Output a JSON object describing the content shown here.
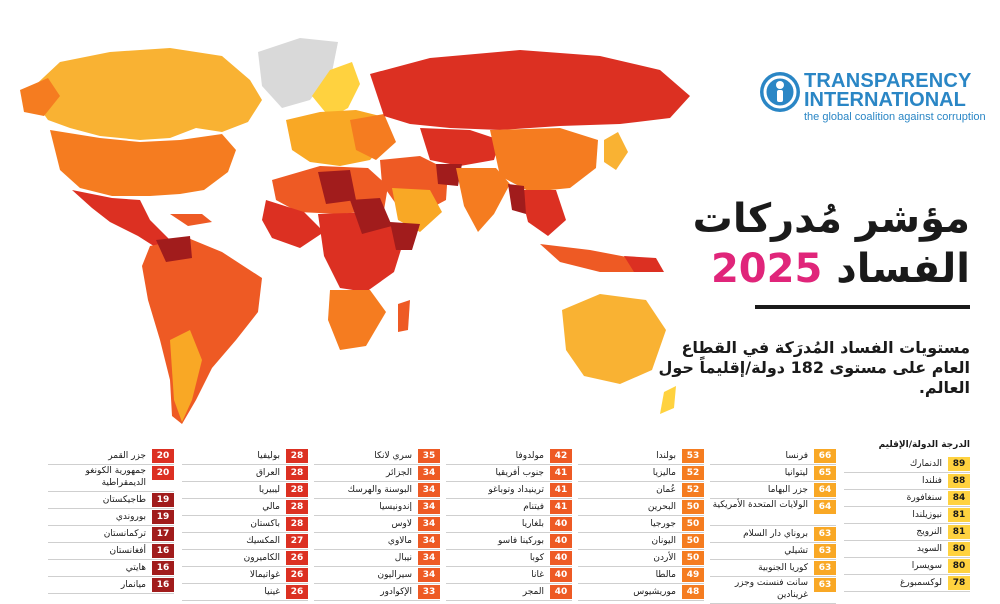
{
  "logo": {
    "line1": "TRANSPARENCY",
    "line2": "INTERNATIONAL",
    "tagline": "the global coalition against corruption",
    "color": "#2a86c5"
  },
  "title": {
    "line1": "مؤشر مُدركات",
    "line2_prefix": "الفساد",
    "year": "2025",
    "year_color": "#e0257a"
  },
  "subtitle": "مستويات الفساد المُدرَكة في القطاع العام على مستوى 182 دولة/إقليماً حول العالم.",
  "table_header": "الدرجة الدولة/الإقليم",
  "colors": {
    "very_high": "#ffd23f",
    "high": "#f9a825",
    "mid_high": "#f57c20",
    "mid": "#ee5a24",
    "low": "#dc3022",
    "very_low": "#a11c1c",
    "no_data": "#d9d9d9"
  },
  "columns": [
    {
      "rows": [
        {
          "country": "الدنمارك",
          "score": "89"
        },
        {
          "country": "فنلندا",
          "score": "88"
        },
        {
          "country": "سنغافورة",
          "score": "84"
        },
        {
          "country": "نيوزيلندا",
          "score": "81"
        },
        {
          "country": "النرويج",
          "score": "81"
        },
        {
          "country": "السويد",
          "score": "80"
        },
        {
          "country": "سويسرا",
          "score": "80"
        },
        {
          "country": "لوكسمبورغ",
          "score": "78"
        }
      ]
    },
    {
      "rows": [
        {
          "country": "فرنسا",
          "score": "66"
        },
        {
          "country": "ليتوانيا",
          "score": "65"
        },
        {
          "country": "جزر البهاما",
          "score": "64"
        },
        {
          "country": "الولايات المتحدة الأمريكية",
          "score": "64"
        },
        {
          "country": "بروناي دار السلام",
          "score": "63"
        },
        {
          "country": "تشيلي",
          "score": "63"
        },
        {
          "country": "كوريا الجنوبية",
          "score": "63"
        },
        {
          "country": "سانت فنسنت وجزر غرينادين",
          "score": "63"
        }
      ]
    },
    {
      "rows": [
        {
          "country": "بولندا",
          "score": "53"
        },
        {
          "country": "ماليزيا",
          "score": "52"
        },
        {
          "country": "عُمان",
          "score": "52"
        },
        {
          "country": "البحرين",
          "score": "50"
        },
        {
          "country": "جورجيا",
          "score": "50"
        },
        {
          "country": "اليونان",
          "score": "50"
        },
        {
          "country": "الأردن",
          "score": "50"
        },
        {
          "country": "مالطا",
          "score": "49"
        },
        {
          "country": "موريشيوس",
          "score": "48"
        }
      ]
    },
    {
      "rows": [
        {
          "country": "مولدوفا",
          "score": "42"
        },
        {
          "country": "جنوب أفريقيا",
          "score": "41"
        },
        {
          "country": "ترينيداد وتوباغو",
          "score": "41"
        },
        {
          "country": "فيتنام",
          "score": "41"
        },
        {
          "country": "بلغاريا",
          "score": "40"
        },
        {
          "country": "بوركينا فاسو",
          "score": "40"
        },
        {
          "country": "كوبا",
          "score": "40"
        },
        {
          "country": "غانا",
          "score": "40"
        },
        {
          "country": "المجر",
          "score": "40"
        }
      ]
    },
    {
      "rows": [
        {
          "country": "سري لانكا",
          "score": "35"
        },
        {
          "country": "الجزائر",
          "score": "34"
        },
        {
          "country": "البوسنة والهرسك",
          "score": "34"
        },
        {
          "country": "إندونيسيا",
          "score": "34"
        },
        {
          "country": "لاوس",
          "score": "34"
        },
        {
          "country": "مالاوي",
          "score": "34"
        },
        {
          "country": "نيبال",
          "score": "34"
        },
        {
          "country": "سيراليون",
          "score": "34"
        },
        {
          "country": "الإكوادور",
          "score": "33"
        }
      ]
    },
    {
      "rows": [
        {
          "country": "بوليفيا",
          "score": "28"
        },
        {
          "country": "العراق",
          "score": "28"
        },
        {
          "country": "ليبيريا",
          "score": "28"
        },
        {
          "country": "مالي",
          "score": "28"
        },
        {
          "country": "باكستان",
          "score": "28"
        },
        {
          "country": "المكسيك",
          "score": "27"
        },
        {
          "country": "الكاميرون",
          "score": "26"
        },
        {
          "country": "غواتيمالا",
          "score": "26"
        },
        {
          "country": "غينيا",
          "score": "26"
        }
      ]
    },
    {
      "rows": [
        {
          "country": "جزر القمر",
          "score": "20"
        },
        {
          "country": "جمهورية الكونغو الديمقراطية",
          "score": "20"
        },
        {
          "country": "طاجيكستان",
          "score": "19"
        },
        {
          "country": "بوروندي",
          "score": "19"
        },
        {
          "country": "تركمانستان",
          "score": "17"
        },
        {
          "country": "أفغانستان",
          "score": "16"
        },
        {
          "country": "هايتي",
          "score": "16"
        },
        {
          "country": "ميانمار",
          "score": "16"
        }
      ]
    }
  ]
}
